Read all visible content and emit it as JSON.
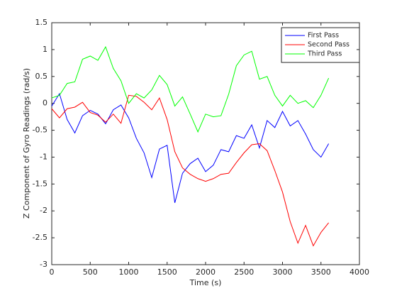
{
  "chart_data": {
    "type": "line",
    "xlabel": "Time (s)",
    "ylabel": "Z Component of Gyro Readings (rad/s)",
    "x": [
      0,
      100,
      200,
      300,
      400,
      500,
      600,
      700,
      800,
      900,
      1000,
      1100,
      1200,
      1300,
      1400,
      1500,
      1600,
      1700,
      1800,
      1900,
      2000,
      2100,
      2200,
      2300,
      2400,
      2500,
      2600,
      2700,
      2800,
      2900,
      3000,
      3100,
      3200,
      3300,
      3400,
      3500,
      3600
    ],
    "series": [
      {
        "name": "First Pass",
        "color": "#0000ff",
        "values": [
          -0.05,
          0.18,
          -0.3,
          -0.55,
          -0.23,
          -0.13,
          -0.2,
          -0.38,
          -0.12,
          -0.03,
          -0.27,
          -0.65,
          -0.92,
          -1.38,
          -0.85,
          -0.78,
          -1.85,
          -1.3,
          -1.12,
          -1.02,
          -1.27,
          -1.15,
          -0.86,
          -0.9,
          -0.6,
          -0.65,
          -0.4,
          -0.83,
          -0.32,
          -0.45,
          -0.15,
          -0.42,
          -0.32,
          -0.57,
          -0.86,
          -1.0,
          -0.75
        ]
      },
      {
        "name": "Second Pass",
        "color": "#ff0000",
        "values": [
          -0.1,
          -0.27,
          -0.1,
          -0.07,
          0.02,
          -0.17,
          -0.22,
          -0.35,
          -0.2,
          -0.37,
          0.15,
          0.13,
          0.02,
          -0.12,
          0.1,
          -0.3,
          -0.9,
          -1.2,
          -1.32,
          -1.4,
          -1.45,
          -1.4,
          -1.32,
          -1.3,
          -1.1,
          -0.92,
          -0.77,
          -0.75,
          -0.88,
          -1.25,
          -1.65,
          -2.2,
          -2.6,
          -2.27,
          -2.65,
          -2.4,
          -2.22
        ]
      },
      {
        "name": "Third Pass",
        "color": "#00ff00",
        "values": [
          0.1,
          0.15,
          0.37,
          0.4,
          0.82,
          0.88,
          0.8,
          1.05,
          0.65,
          0.42,
          0.0,
          0.18,
          0.1,
          0.25,
          0.52,
          0.35,
          -0.05,
          0.12,
          -0.2,
          -0.53,
          -0.2,
          -0.25,
          -0.23,
          0.17,
          0.7,
          0.9,
          0.97,
          0.45,
          0.5,
          0.15,
          -0.05,
          0.15,
          0.0,
          0.05,
          -0.08,
          0.15,
          0.47
        ]
      }
    ],
    "xlim": [
      0,
      4000
    ],
    "xticks": [
      0,
      500,
      1000,
      1500,
      2000,
      2500,
      3000,
      3500,
      4000
    ],
    "ylim": [
      -3,
      1.5
    ],
    "yticks": [
      -3,
      -2.5,
      -2,
      -1.5,
      -1,
      -0.5,
      0,
      0.5,
      1,
      1.5
    ],
    "grid": false,
    "legend": "northeast"
  }
}
